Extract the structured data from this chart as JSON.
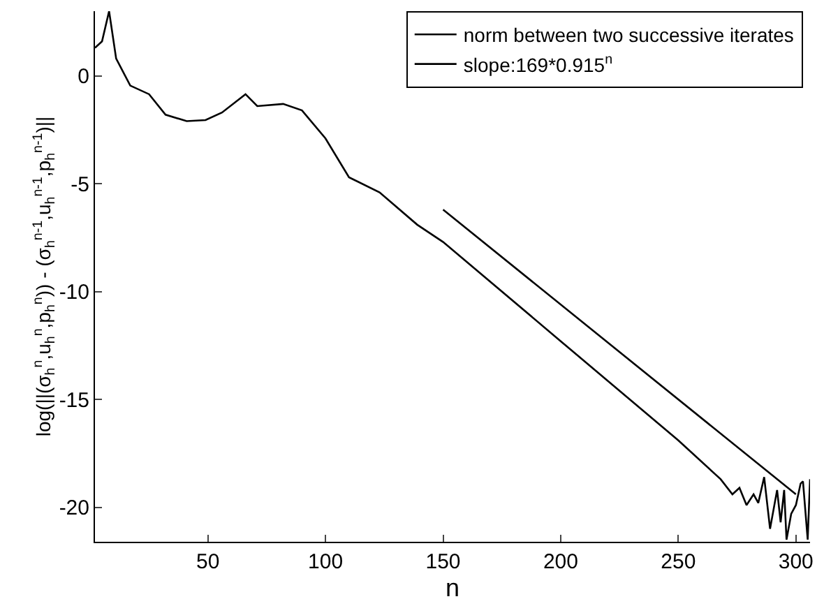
{
  "chart_data": {
    "type": "line",
    "xlabel": "n",
    "ylabel": "log(||(σ$_{h}$$^{n}$,u$_{h}$$^{n}$,p$_{h}$$^{n}$)) - (σ$_{h}$$^{n-1}$,u$_{h}$$^{n-1}$,p$_{h}$$^{n-1}$)||",
    "xlim": [
      2,
      306
    ],
    "ylim": [
      -21.6,
      3.0
    ],
    "xticks": [
      50,
      100,
      150,
      200,
      250,
      300
    ],
    "yticks": [
      -20,
      -15,
      -10,
      -5,
      0
    ],
    "legend": "top right",
    "marker": "none",
    "line_style": "solid",
    "series": [
      {
        "name": "norm between two successive iterates",
        "color": "#000000",
        "x": [
          2,
          5,
          8,
          11,
          17,
          25,
          32,
          41,
          49,
          56,
          66,
          71,
          82,
          90,
          100,
          110,
          123,
          139,
          150,
          200,
          250,
          268,
          273,
          276,
          279,
          282,
          284,
          286.5,
          289,
          292,
          293.5,
          295,
          296,
          298,
          300,
          302,
          303,
          305,
          306
        ],
        "values": [
          1.3,
          1.6,
          3.0,
          0.8,
          -0.45,
          -0.85,
          -1.8,
          -2.1,
          -2.05,
          -1.7,
          -0.85,
          -1.4,
          -1.3,
          -1.6,
          -2.9,
          -4.7,
          -5.4,
          -6.9,
          -7.7,
          -12.3,
          -16.9,
          -18.7,
          -19.4,
          -19.1,
          -19.9,
          -19.4,
          -19.8,
          -18.6,
          -21.0,
          -19.2,
          -20.7,
          -19.2,
          -21.5,
          -20.3,
          -19.9,
          -18.9,
          -18.8,
          -21.5,
          -18.7
        ]
      },
      {
        "name": "slope:169*0.915$^{n}$",
        "color": "#000000",
        "x": [
          150,
          300
        ],
        "values": [
          -6.2,
          -19.4
        ]
      }
    ]
  }
}
